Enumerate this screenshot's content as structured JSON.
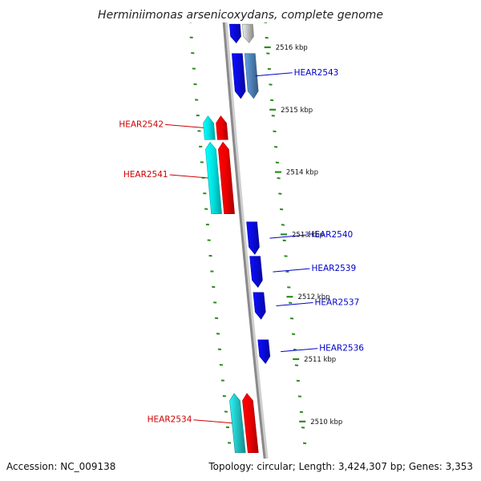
{
  "header": {
    "title": "Herminiimonas arsenicoxydans, complete genome"
  },
  "footer": {
    "accession": "Accession: NC_009138",
    "summary": "Topology: circular; Length: 3,424,307 bp; Genes: 3,353"
  },
  "colors": {
    "backbone": "#8a8a8a",
    "tick": "#2e8b1e",
    "forward_label": "#0000cc",
    "reverse_label": "#cc0000",
    "blue": "#0a0ae0",
    "steel": "#4f82b8",
    "grey": "#c0c0c0",
    "red": "#ee0000",
    "cyan": "#00e4e4",
    "teal": "#22c4c4"
  },
  "scale": {
    "unit": "kbp",
    "labels": [
      {
        "kbp": 2516,
        "text": "2516 kbp"
      },
      {
        "kbp": 2515,
        "text": "2515 kbp"
      },
      {
        "kbp": 2514,
        "text": "2514 kbp"
      },
      {
        "kbp": 2513,
        "text": "2513 kbp"
      },
      {
        "kbp": 2512,
        "text": "2512 kbp"
      },
      {
        "kbp": 2511,
        "text": "2511 kbp"
      },
      {
        "kbp": 2510,
        "text": "2510 kbp"
      }
    ]
  },
  "genes": [
    {
      "name": "",
      "strand": "forward",
      "lane": 1,
      "start_kbp": 2516.07,
      "end_kbp": 2516.37,
      "color": "blue"
    },
    {
      "name": "",
      "strand": "forward",
      "lane": 2,
      "start_kbp": 2516.07,
      "end_kbp": 2516.37,
      "color": "grey"
    },
    {
      "name": "HEAR2543",
      "strand": "forward",
      "lane": 1,
      "start_kbp": 2515.18,
      "end_kbp": 2515.9,
      "color": "blue"
    },
    {
      "name": "",
      "strand": "forward",
      "lane": 2,
      "start_kbp": 2515.18,
      "end_kbp": 2515.9,
      "color": "steel"
    },
    {
      "name": "HEAR2542",
      "strand": "reverse",
      "lane": 1,
      "start_kbp": 2514.52,
      "end_kbp": 2514.9,
      "color": "red"
    },
    {
      "name": "",
      "strand": "reverse",
      "lane": 2,
      "start_kbp": 2514.52,
      "end_kbp": 2514.9,
      "color": "cyan"
    },
    {
      "name": "HEAR2541",
      "strand": "reverse",
      "lane": 1,
      "start_kbp": 2513.33,
      "end_kbp": 2514.48,
      "color": "red"
    },
    {
      "name": "",
      "strand": "reverse",
      "lane": 2,
      "start_kbp": 2513.33,
      "end_kbp": 2514.48,
      "color": "cyan"
    },
    {
      "name": "HEAR2540",
      "strand": "forward",
      "lane": 1,
      "start_kbp": 2512.68,
      "end_kbp": 2513.2,
      "color": "blue"
    },
    {
      "name": "HEAR2539",
      "strand": "forward",
      "lane": 1,
      "start_kbp": 2512.15,
      "end_kbp": 2512.65,
      "color": "blue"
    },
    {
      "name": "HEAR2537",
      "strand": "forward",
      "lane": 1,
      "start_kbp": 2511.64,
      "end_kbp": 2512.07,
      "color": "blue"
    },
    {
      "name": "HEAR2536",
      "strand": "forward",
      "lane": 1,
      "start_kbp": 2510.93,
      "end_kbp": 2511.31,
      "color": "blue"
    },
    {
      "name": "HEAR2534",
      "strand": "reverse",
      "lane": 1,
      "start_kbp": 2509.5,
      "end_kbp": 2510.45,
      "color": "red"
    },
    {
      "name": "",
      "strand": "reverse",
      "lane": 2,
      "start_kbp": 2509.5,
      "end_kbp": 2510.45,
      "color": "teal"
    }
  ]
}
